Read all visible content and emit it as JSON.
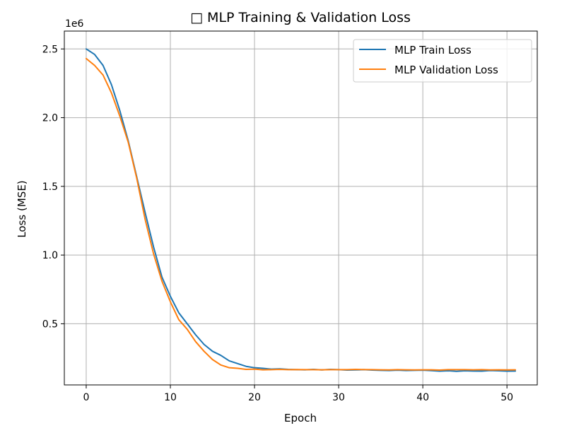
{
  "chart_data": {
    "type": "line",
    "title": "□ MLP Training & Validation Loss",
    "xlabel": "Epoch",
    "ylabel": "Loss (MSE)",
    "y_offset_label": "1e6",
    "xlim": [
      -2.6,
      53.6
    ],
    "ylim": [
      0.055,
      2.63
    ],
    "x_ticks": [
      0,
      10,
      20,
      30,
      40,
      50
    ],
    "y_ticks": [
      0.5,
      1.0,
      1.5,
      2.0,
      2.5
    ],
    "y_tick_labels": [
      "0.5",
      "1.0",
      "1.5",
      "2.0",
      "2.5"
    ],
    "grid": true,
    "legend_position": "top-right",
    "x": [
      0,
      1,
      2,
      3,
      4,
      5,
      6,
      7,
      8,
      9,
      10,
      11,
      12,
      13,
      14,
      15,
      16,
      17,
      18,
      19,
      20,
      21,
      22,
      23,
      24,
      25,
      26,
      27,
      28,
      29,
      30,
      31,
      32,
      33,
      34,
      35,
      36,
      37,
      38,
      39,
      40,
      41,
      42,
      43,
      44,
      45,
      46,
      47,
      48,
      49,
      50,
      51
    ],
    "series": [
      {
        "name": "MLP Train Loss",
        "color": "#1f77b4",
        "values": [
          2.5,
          2.46,
          2.38,
          2.24,
          2.05,
          1.83,
          1.57,
          1.31,
          1.06,
          0.84,
          0.7,
          0.58,
          0.5,
          0.42,
          0.35,
          0.3,
          0.27,
          0.23,
          0.21,
          0.19,
          0.18,
          0.176,
          0.17,
          0.172,
          0.168,
          0.166,
          0.165,
          0.168,
          0.164,
          0.168,
          0.166,
          0.163,
          0.164,
          0.166,
          0.163,
          0.161,
          0.16,
          0.162,
          0.16,
          0.161,
          0.162,
          0.159,
          0.155,
          0.158,
          0.154,
          0.158,
          0.156,
          0.155,
          0.16,
          0.158,
          0.155,
          0.156
        ]
      },
      {
        "name": "MLP Validation Loss",
        "color": "#ff7f0e",
        "values": [
          2.43,
          2.38,
          2.31,
          2.18,
          2.01,
          1.82,
          1.56,
          1.26,
          1.01,
          0.81,
          0.66,
          0.53,
          0.46,
          0.37,
          0.3,
          0.24,
          0.2,
          0.18,
          0.176,
          0.168,
          0.17,
          0.165,
          0.166,
          0.168,
          0.166,
          0.167,
          0.166,
          0.166,
          0.165,
          0.166,
          0.166,
          0.166,
          0.168,
          0.167,
          0.166,
          0.165,
          0.164,
          0.166,
          0.165,
          0.164,
          0.165,
          0.165,
          0.163,
          0.166,
          0.166,
          0.166,
          0.165,
          0.166,
          0.164,
          0.165,
          0.164,
          0.165
        ]
      }
    ]
  }
}
